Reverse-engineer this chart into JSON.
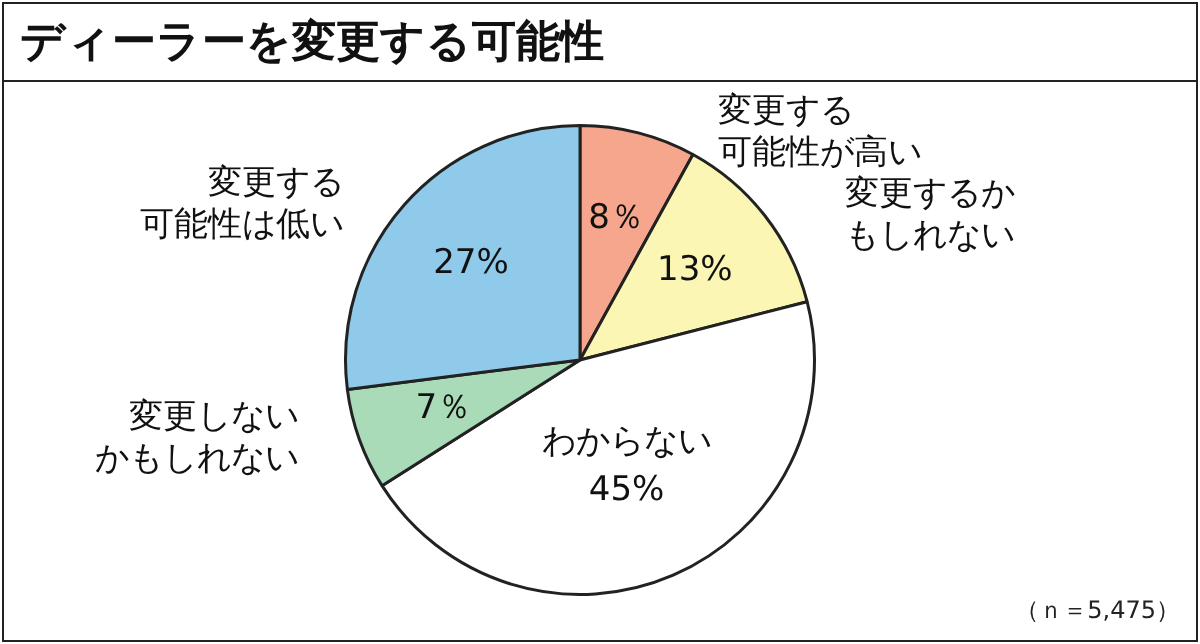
{
  "chart_data": {
    "type": "pie",
    "title": "ディーラーを変更する可能性",
    "categories": [
      "変更する可能性が高い",
      "変更するかもしれない",
      "わからない",
      "変更しないかもしれない",
      "変更する可能性は低い"
    ],
    "values": [
      8,
      13,
      45,
      7,
      27
    ],
    "colors": [
      "#f5a68c",
      "#fcf6b4",
      "#ffffff",
      "#aadbb9",
      "#8fcaeb"
    ],
    "value_labels": [
      "8％",
      "13%",
      "45%",
      "7％",
      "27%"
    ],
    "annotations": [
      "（ｎ＝5,475）"
    ]
  }
}
